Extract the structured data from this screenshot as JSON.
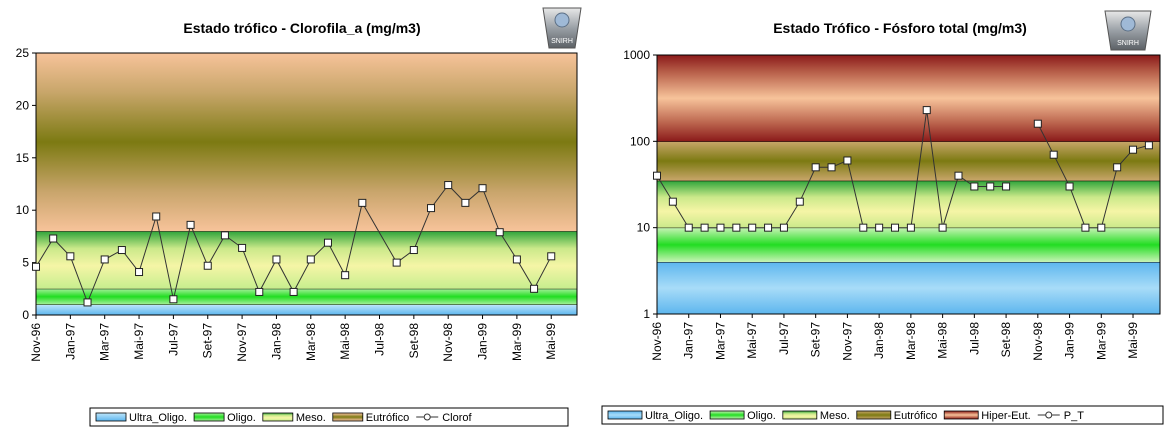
{
  "colors": {
    "ultra": "#87c8f0",
    "oligo": "#33e033",
    "meso": "#f2f2a0",
    "eutro": "#8a7a2c",
    "hiper": "#f7c39a",
    "hiper_dark": "#8b1a1a",
    "series_line": "#333333",
    "marker_fill": "#ffffff"
  },
  "logo": {
    "text": "SNIRH"
  },
  "chart_data": [
    {
      "type": "line",
      "title": "Estado trófico - Clorofila_a (mg/m3)",
      "xlabel": "",
      "ylabel": "",
      "ylim": [
        0,
        25
      ],
      "yticks": [
        "0",
        "5",
        "10",
        "15",
        "20",
        "25"
      ],
      "x_tick_labels": [
        "Nov-96",
        "Jan-97",
        "Mar-97",
        "Mai-97",
        "Jul-97",
        "Set-97",
        "Nov-97",
        "Jan-98",
        "Mar-98",
        "Mai-98",
        "Jul-98",
        "Set-98",
        "Nov-98",
        "Jan-99",
        "Mar-99",
        "Mai-99"
      ],
      "bands": [
        {
          "name": "Ultra_Oligo.",
          "from": 0,
          "to": 1,
          "color_key": "ultra"
        },
        {
          "name": "Oligo.",
          "from": 1,
          "to": 2.5,
          "color_key": "oligo"
        },
        {
          "name": "Meso.",
          "from": 2.5,
          "to": 8,
          "color_key": "meso"
        },
        {
          "name": "Eutrófico",
          "from": 8,
          "to": 25,
          "color_key": "eutro"
        }
      ],
      "series": [
        {
          "name": "Clorof",
          "points": [
            [
              "Nov-96",
              4.6
            ],
            [
              "Dez-96",
              7.3
            ],
            [
              "Jan-97",
              5.6
            ],
            [
              "Fev-97",
              1.2
            ],
            [
              "Mar-97",
              5.3
            ],
            [
              "Abr-97",
              6.2
            ],
            [
              "Mai-97",
              4.1
            ],
            [
              "Jun-97",
              9.4
            ],
            [
              "Jul-97",
              1.5
            ],
            [
              "Ago-97",
              8.6
            ],
            [
              "Set-97",
              4.7
            ],
            [
              "Out-97",
              7.6
            ],
            [
              "Nov-97",
              6.4
            ],
            [
              "Dez-97",
              2.2
            ],
            [
              "Jan-98",
              5.3
            ],
            [
              "Fev-98",
              2.2
            ],
            [
              "Mar-98",
              5.3
            ],
            [
              "Abr-98",
              6.9
            ],
            [
              "Mai-98",
              3.8
            ],
            [
              "Jun-98",
              10.7
            ],
            [
              "Ago-98",
              5.0
            ],
            [
              "Set-98",
              6.2
            ],
            [
              "Out-98",
              10.2
            ],
            [
              "Nov-98",
              12.4
            ],
            [
              "Dez-98",
              10.7
            ],
            [
              "Jan-99",
              12.1
            ],
            [
              "Fev-99",
              7.9
            ],
            [
              "Mar-99",
              5.3
            ],
            [
              "Abr-99",
              2.5
            ],
            [
              "Mai-99",
              5.6
            ]
          ]
        }
      ],
      "legend": {
        "placement": "bottom",
        "items": [
          {
            "label": "Ultra_Oligo.",
            "kind": "swatch",
            "color_key": "ultra"
          },
          {
            "label": "Oligo.",
            "kind": "swatch",
            "color_key": "oligo"
          },
          {
            "label": "Meso.",
            "kind": "swatch",
            "color_key": "meso"
          },
          {
            "label": "Eutrófico",
            "kind": "swatch",
            "color_key": "eutro"
          },
          {
            "label": "Clorof",
            "kind": "line"
          }
        ]
      }
    },
    {
      "type": "line",
      "title": "Estado Trófico - Fósforo total (mg/m3)",
      "xlabel": "",
      "ylabel": "",
      "yscale": "log",
      "ylim": [
        1,
        1000
      ],
      "yticks": [
        "1",
        "10",
        "100",
        "1000"
      ],
      "x_tick_labels": [
        "Nov-96",
        "Jan-97",
        "Mar-97",
        "Mai-97",
        "Jul-97",
        "Set-97",
        "Nov-97",
        "Jan-98",
        "Mar-98",
        "Mai-98",
        "Jul-98",
        "Set-98",
        "Nov-98",
        "Jan-99",
        "Mar-99",
        "Mai-99"
      ],
      "bands": [
        {
          "name": "Ultra_Oligo.",
          "from": 1,
          "to": 4,
          "color_key": "ultra"
        },
        {
          "name": "Oligo.",
          "from": 4,
          "to": 10,
          "color_key": "oligo"
        },
        {
          "name": "Meso.",
          "from": 10,
          "to": 35,
          "color_key": "meso"
        },
        {
          "name": "Eutrófico",
          "from": 35,
          "to": 100,
          "color_key": "eutro"
        },
        {
          "name": "Hiper-Eut.",
          "from": 100,
          "to": 1000,
          "color_key": "hiper"
        }
      ],
      "series": [
        {
          "name": "P_T",
          "segments": [
            [
              [
                "Nov-96",
                40
              ],
              [
                "Dez-96",
                20
              ],
              [
                "Jan-97",
                10
              ],
              [
                "Fev-97",
                10
              ],
              [
                "Mar-97",
                10
              ],
              [
                "Abr-97",
                10
              ],
              [
                "Mai-97",
                10
              ],
              [
                "Jun-97",
                10
              ],
              [
                "Jul-97",
                10
              ],
              [
                "Ago-97",
                20
              ],
              [
                "Set-97",
                50
              ],
              [
                "Out-97",
                50
              ],
              [
                "Nov-97",
                60
              ],
              [
                "Dez-97",
                10
              ],
              [
                "Jan-98",
                10
              ],
              [
                "Fev-98",
                10
              ],
              [
                "Mar-98",
                10
              ],
              [
                "Abr-98",
                230
              ],
              [
                "Mai-98",
                10
              ],
              [
                "Jun-98",
                40
              ],
              [
                "Jul-98",
                30
              ],
              [
                "Ago-98",
                30
              ],
              [
                "Set-98",
                30
              ]
            ],
            [
              [
                "Nov-98",
                160
              ],
              [
                "Dez-98",
                70
              ],
              [
                "Jan-99",
                30
              ],
              [
                "Fev-99",
                10
              ],
              [
                "Mar-99",
                10
              ],
              [
                "Abr-99",
                50
              ],
              [
                "Mai-99",
                80
              ],
              [
                "Jun-99",
                90
              ]
            ]
          ]
        }
      ],
      "legend": {
        "placement": "bottom",
        "items": [
          {
            "label": "Ultra_Oligo.",
            "kind": "swatch",
            "color_key": "ultra"
          },
          {
            "label": "Oligo.",
            "kind": "swatch",
            "color_key": "oligo"
          },
          {
            "label": "Meso.",
            "kind": "swatch",
            "color_key": "meso"
          },
          {
            "label": "Eutrófico",
            "kind": "swatch",
            "color_key": "eutro"
          },
          {
            "label": "Hiper-Eut.",
            "kind": "swatch",
            "color_key": "hiper"
          },
          {
            "label": "P_T",
            "kind": "line"
          }
        ]
      }
    }
  ]
}
